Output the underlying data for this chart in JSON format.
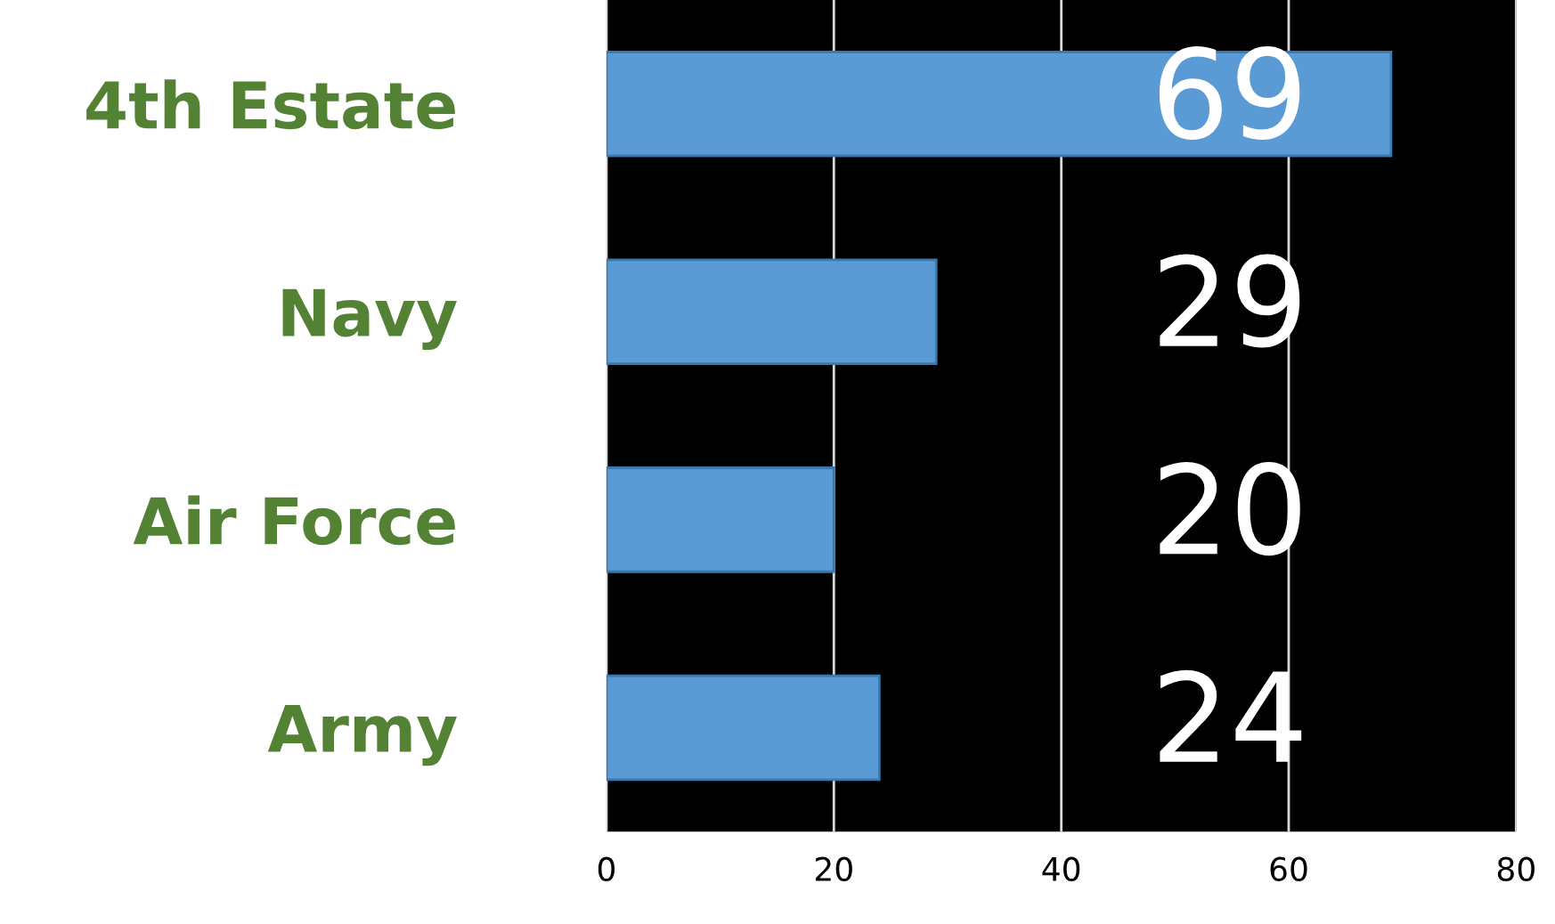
{
  "chart_data": {
    "type": "bar",
    "orientation": "horizontal",
    "categories": [
      "4th Estate",
      "Navy",
      "Air Force",
      "Army"
    ],
    "values": [
      69,
      29,
      20,
      24
    ],
    "color": "#5b9bd5",
    "xlim": [
      0,
      80
    ],
    "xticks": [
      0,
      20,
      40,
      60,
      80
    ],
    "grid": "x",
    "data_labels": true,
    "legend": false
  }
}
